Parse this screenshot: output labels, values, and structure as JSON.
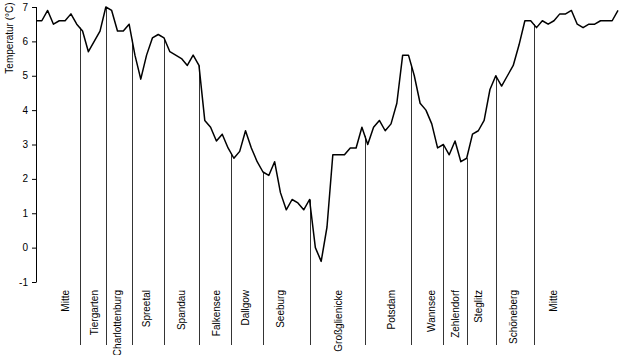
{
  "chart_data": {
    "type": "line",
    "y_label": "Temperatur (°C)",
    "categories": [
      null,
      null,
      null,
      null,
      null,
      "Mitte",
      null,
      null,
      null,
      null,
      "Tiergarten",
      null,
      null,
      null,
      "Charlottenburg",
      null,
      null,
      null,
      null,
      "Spreetal",
      null,
      null,
      null,
      null,
      null,
      "Spandau",
      null,
      null,
      null,
      null,
      null,
      "Falkensee",
      null,
      null,
      null,
      null,
      "Dallgow",
      null,
      null,
      null,
      null,
      null,
      "Seeburg",
      null,
      null,
      null,
      null,
      null,
      null,
      null,
      null,
      null,
      "Großglienicke",
      null,
      null,
      null,
      null,
      null,
      null,
      null,
      null,
      "Potsdam",
      null,
      null,
      null,
      null,
      null,
      null,
      "Wannsee",
      null,
      null,
      null,
      "Zehlendorf",
      null,
      null,
      null,
      "Steglitz",
      null,
      null,
      null,
      null,
      null,
      "Schöneberg",
      null,
      null,
      null,
      null,
      null,
      null,
      "Mitte",
      null,
      null,
      null,
      null,
      null,
      null,
      null,
      null,
      null,
      null,
      null
    ],
    "values": [
      6.6,
      6.6,
      6.9,
      6.5,
      6.6,
      6.6,
      6.8,
      6.5,
      6.3,
      5.7,
      6.0,
      6.3,
      7.0,
      6.9,
      6.3,
      6.3,
      6.5,
      5.6,
      4.9,
      5.6,
      6.1,
      6.2,
      6.1,
      5.7,
      5.6,
      5.5,
      5.3,
      5.6,
      5.3,
      3.7,
      3.5,
      3.1,
      3.3,
      2.9,
      2.6,
      2.8,
      3.4,
      2.9,
      2.5,
      2.2,
      2.1,
      2.5,
      1.6,
      1.1,
      1.4,
      1.3,
      1.1,
      1.4,
      0.0,
      -0.4,
      0.6,
      2.7,
      2.7,
      2.7,
      2.9,
      2.9,
      3.5,
      3.0,
      3.5,
      3.7,
      3.4,
      3.6,
      4.2,
      5.6,
      5.6,
      5.0,
      4.2,
      4.0,
      3.6,
      2.9,
      3.0,
      2.7,
      3.1,
      2.5,
      2.6,
      3.3,
      3.4,
      3.7,
      4.6,
      5.0,
      4.7,
      5.0,
      5.3,
      5.9,
      6.6,
      6.6,
      6.4,
      6.6,
      6.5,
      6.6,
      6.8,
      6.8,
      6.9,
      6.5,
      6.4,
      6.5,
      6.5,
      6.6,
      6.6,
      6.6,
      6.9
    ],
    "color": "#000000",
    "ylim": [
      -1,
      7
    ],
    "yticks": [
      -1,
      0,
      1,
      2,
      3,
      4,
      5,
      6,
      7
    ],
    "grid": false
  }
}
